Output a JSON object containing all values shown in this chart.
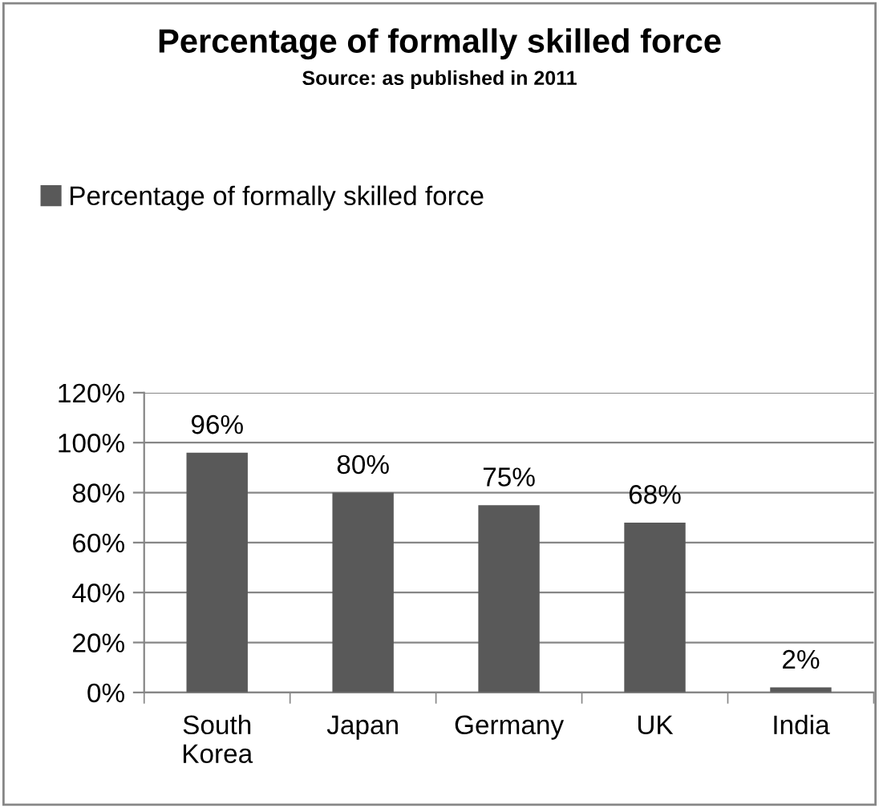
{
  "chart_data": {
    "type": "bar",
    "title": "Percentage of formally skilled force",
    "subtitle": "Source: as published in 2011",
    "categories": [
      "South Korea",
      "Japan",
      "Germany",
      "UK",
      "India"
    ],
    "series": [
      {
        "name": "Percentage of formally skilled force",
        "color": "#595959",
        "values": [
          96,
          80,
          75,
          68,
          2
        ],
        "value_labels": [
          "96%",
          "80%",
          "75%",
          "68%",
          "2%"
        ]
      }
    ],
    "ylim": [
      0,
      120
    ],
    "yticks": [
      {
        "value": 0,
        "label": "0%"
      },
      {
        "value": 20,
        "label": "20%"
      },
      {
        "value": 40,
        "label": "40%"
      },
      {
        "value": 60,
        "label": "60%"
      },
      {
        "value": 80,
        "label": "80%"
      },
      {
        "value": 100,
        "label": "100%"
      },
      {
        "value": 120,
        "label": "120%"
      }
    ],
    "grid": "y",
    "legend": "top left"
  }
}
